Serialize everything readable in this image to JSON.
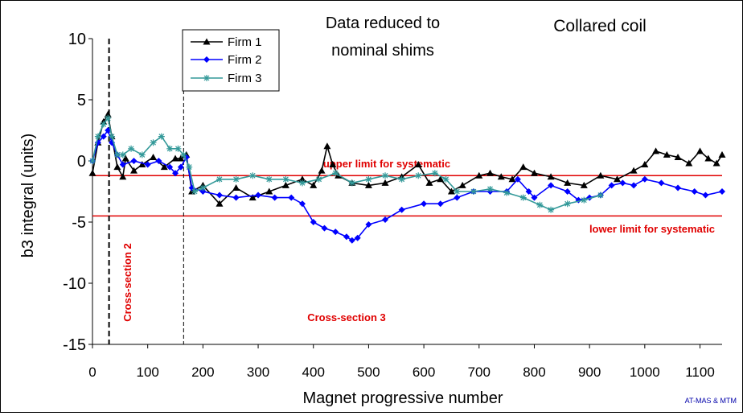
{
  "chart_data": {
    "type": "line",
    "title": "Collared coil",
    "subtitle_line1": "Data reduced to",
    "subtitle_line2": "nominal shims",
    "xlabel": "Magnet progressive number",
    "ylabel": "b3 integral (units)",
    "xlim": [
      0,
      1140
    ],
    "ylim": [
      -15,
      10
    ],
    "xticks": [
      0,
      100,
      200,
      300,
      400,
      500,
      600,
      700,
      800,
      900,
      1000,
      1100
    ],
    "yticks": [
      10,
      5,
      0,
      -5,
      -10,
      -15
    ],
    "grid": false,
    "legend_position": "top-left",
    "series": [
      {
        "name": "Firm 1",
        "color": "#000000",
        "marker": "triangle",
        "x": [
          0,
          10,
          20,
          28,
          35,
          45,
          55,
          60,
          75,
          90,
          110,
          130,
          150,
          160,
          170,
          180,
          200,
          230,
          260,
          290,
          320,
          350,
          380,
          400,
          415,
          425,
          435,
          445,
          470,
          500,
          530,
          560,
          590,
          610,
          630,
          650,
          670,
          700,
          720,
          740,
          760,
          780,
          800,
          830,
          860,
          890,
          920,
          950,
          980,
          1000,
          1020,
          1040,
          1060,
          1080,
          1100,
          1115,
          1130,
          1140
        ],
        "y": [
          -1,
          1.5,
          3.2,
          3.8,
          2,
          -0.5,
          -1.3,
          0.2,
          -0.8,
          -0.3,
          0.3,
          -0.5,
          0.2,
          0.2,
          0.5,
          -2.5,
          -2,
          -3.5,
          -2.2,
          -3,
          -2.5,
          -2,
          -1.5,
          -2,
          -0.8,
          1.2,
          -0.3,
          -1.2,
          -1.8,
          -2,
          -1.8,
          -1.3,
          -0.3,
          -1.8,
          -1.5,
          -2.5,
          -2,
          -1.2,
          -1,
          -1.3,
          -1.5,
          -0.5,
          -1,
          -1.3,
          -1.8,
          -2,
          -1.2,
          -1.5,
          -0.8,
          -0.3,
          0.8,
          0.5,
          0.3,
          -0.2,
          0.8,
          0.2,
          -0.2,
          0.5
        ]
      },
      {
        "name": "Firm 2",
        "color": "#0000ff",
        "marker": "diamond",
        "x": [
          0,
          10,
          20,
          28,
          35,
          45,
          55,
          75,
          100,
          120,
          140,
          150,
          160,
          170,
          180,
          200,
          230,
          260,
          300,
          330,
          360,
          380,
          400,
          420,
          440,
          460,
          470,
          480,
          500,
          530,
          560,
          600,
          630,
          660,
          690,
          720,
          750,
          770,
          790,
          800,
          830,
          860,
          880,
          900,
          920,
          940,
          960,
          980,
          1000,
          1030,
          1060,
          1090,
          1110,
          1140
        ],
        "y": [
          0,
          1.5,
          2,
          2.5,
          1.5,
          0.5,
          -0.3,
          0,
          -0.3,
          0,
          -0.5,
          -1,
          -0.5,
          0.3,
          -2.2,
          -2.5,
          -2.8,
          -3,
          -2.8,
          -3,
          -3,
          -3.5,
          -5,
          -5.5,
          -5.8,
          -6.2,
          -6.5,
          -6.3,
          -5.2,
          -4.8,
          -4,
          -3.5,
          -3.5,
          -3,
          -2.5,
          -2.5,
          -2.5,
          -1.5,
          -2.5,
          -3,
          -2,
          -2.5,
          -3.2,
          -3,
          -2.8,
          -2,
          -1.8,
          -2,
          -1.5,
          -1.8,
          -2.2,
          -2.5,
          -2.8,
          -2.5
        ]
      },
      {
        "name": "Firm 3",
        "color": "#339999",
        "marker": "star",
        "x": [
          0,
          10,
          20,
          28,
          35,
          45,
          55,
          70,
          90,
          110,
          125,
          140,
          155,
          165,
          175,
          185,
          200,
          230,
          260,
          290,
          320,
          350,
          380,
          410,
          440,
          470,
          500,
          530,
          560,
          590,
          620,
          640,
          660,
          690,
          720,
          750,
          780,
          810,
          830,
          860,
          890,
          920
        ],
        "y": [
          0,
          2,
          3,
          3.5,
          2,
          0.5,
          0.5,
          1,
          0.5,
          1.5,
          2,
          1,
          1,
          0.5,
          -0.5,
          -2.5,
          -2.2,
          -1.5,
          -1.5,
          -1.2,
          -1.5,
          -1.5,
          -1.8,
          -1.5,
          -1,
          -1.8,
          -1.5,
          -1.2,
          -1.5,
          -1.2,
          -1,
          -1.5,
          -2.5,
          -2.5,
          -2.3,
          -2.6,
          -3,
          -3.6,
          -4,
          -3.5,
          -3.2,
          -2.8
        ]
      }
    ],
    "reference_lines": [
      {
        "y": -1.2,
        "label": "upper limit for systematic",
        "color": "#e00000"
      },
      {
        "y": -4.5,
        "label": "lower limit for systematic",
        "color": "#e00000"
      }
    ],
    "vertical_lines": [
      {
        "x": 30,
        "style": "thick-dash"
      },
      {
        "x": 165,
        "style": "thin-dash"
      }
    ],
    "annotations": [
      {
        "text": "Cross-section 2",
        "color": "#e00000"
      },
      {
        "text": "Cross-section 3",
        "color": "#e00000"
      }
    ],
    "credit": "AT-MAS & MTM"
  }
}
